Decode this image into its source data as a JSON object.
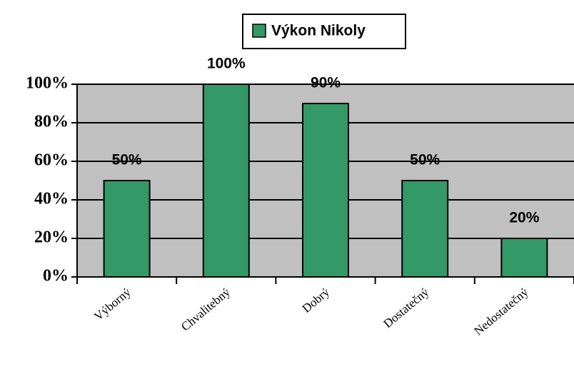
{
  "chart_data": {
    "type": "bar",
    "legend": "Výkon Nikoly",
    "categories": [
      "Výborný",
      "Chvalitebný",
      "Dobrý",
      "Dostatečný",
      "Nedostatečný"
    ],
    "values": [
      50,
      100,
      90,
      50,
      20
    ],
    "value_labels": [
      "50%",
      "100%",
      "90%",
      "50%",
      "20%"
    ],
    "color": "#339966",
    "ylim": [
      0,
      100
    ],
    "yticks": [
      {
        "value": 0,
        "label": "0%"
      },
      {
        "value": 20,
        "label": "20%"
      },
      {
        "value": 40,
        "label": "40%"
      },
      {
        "value": 60,
        "label": "60%"
      },
      {
        "value": 80,
        "label": "80%"
      },
      {
        "value": 100,
        "label": "100%"
      }
    ],
    "grid": true
  }
}
